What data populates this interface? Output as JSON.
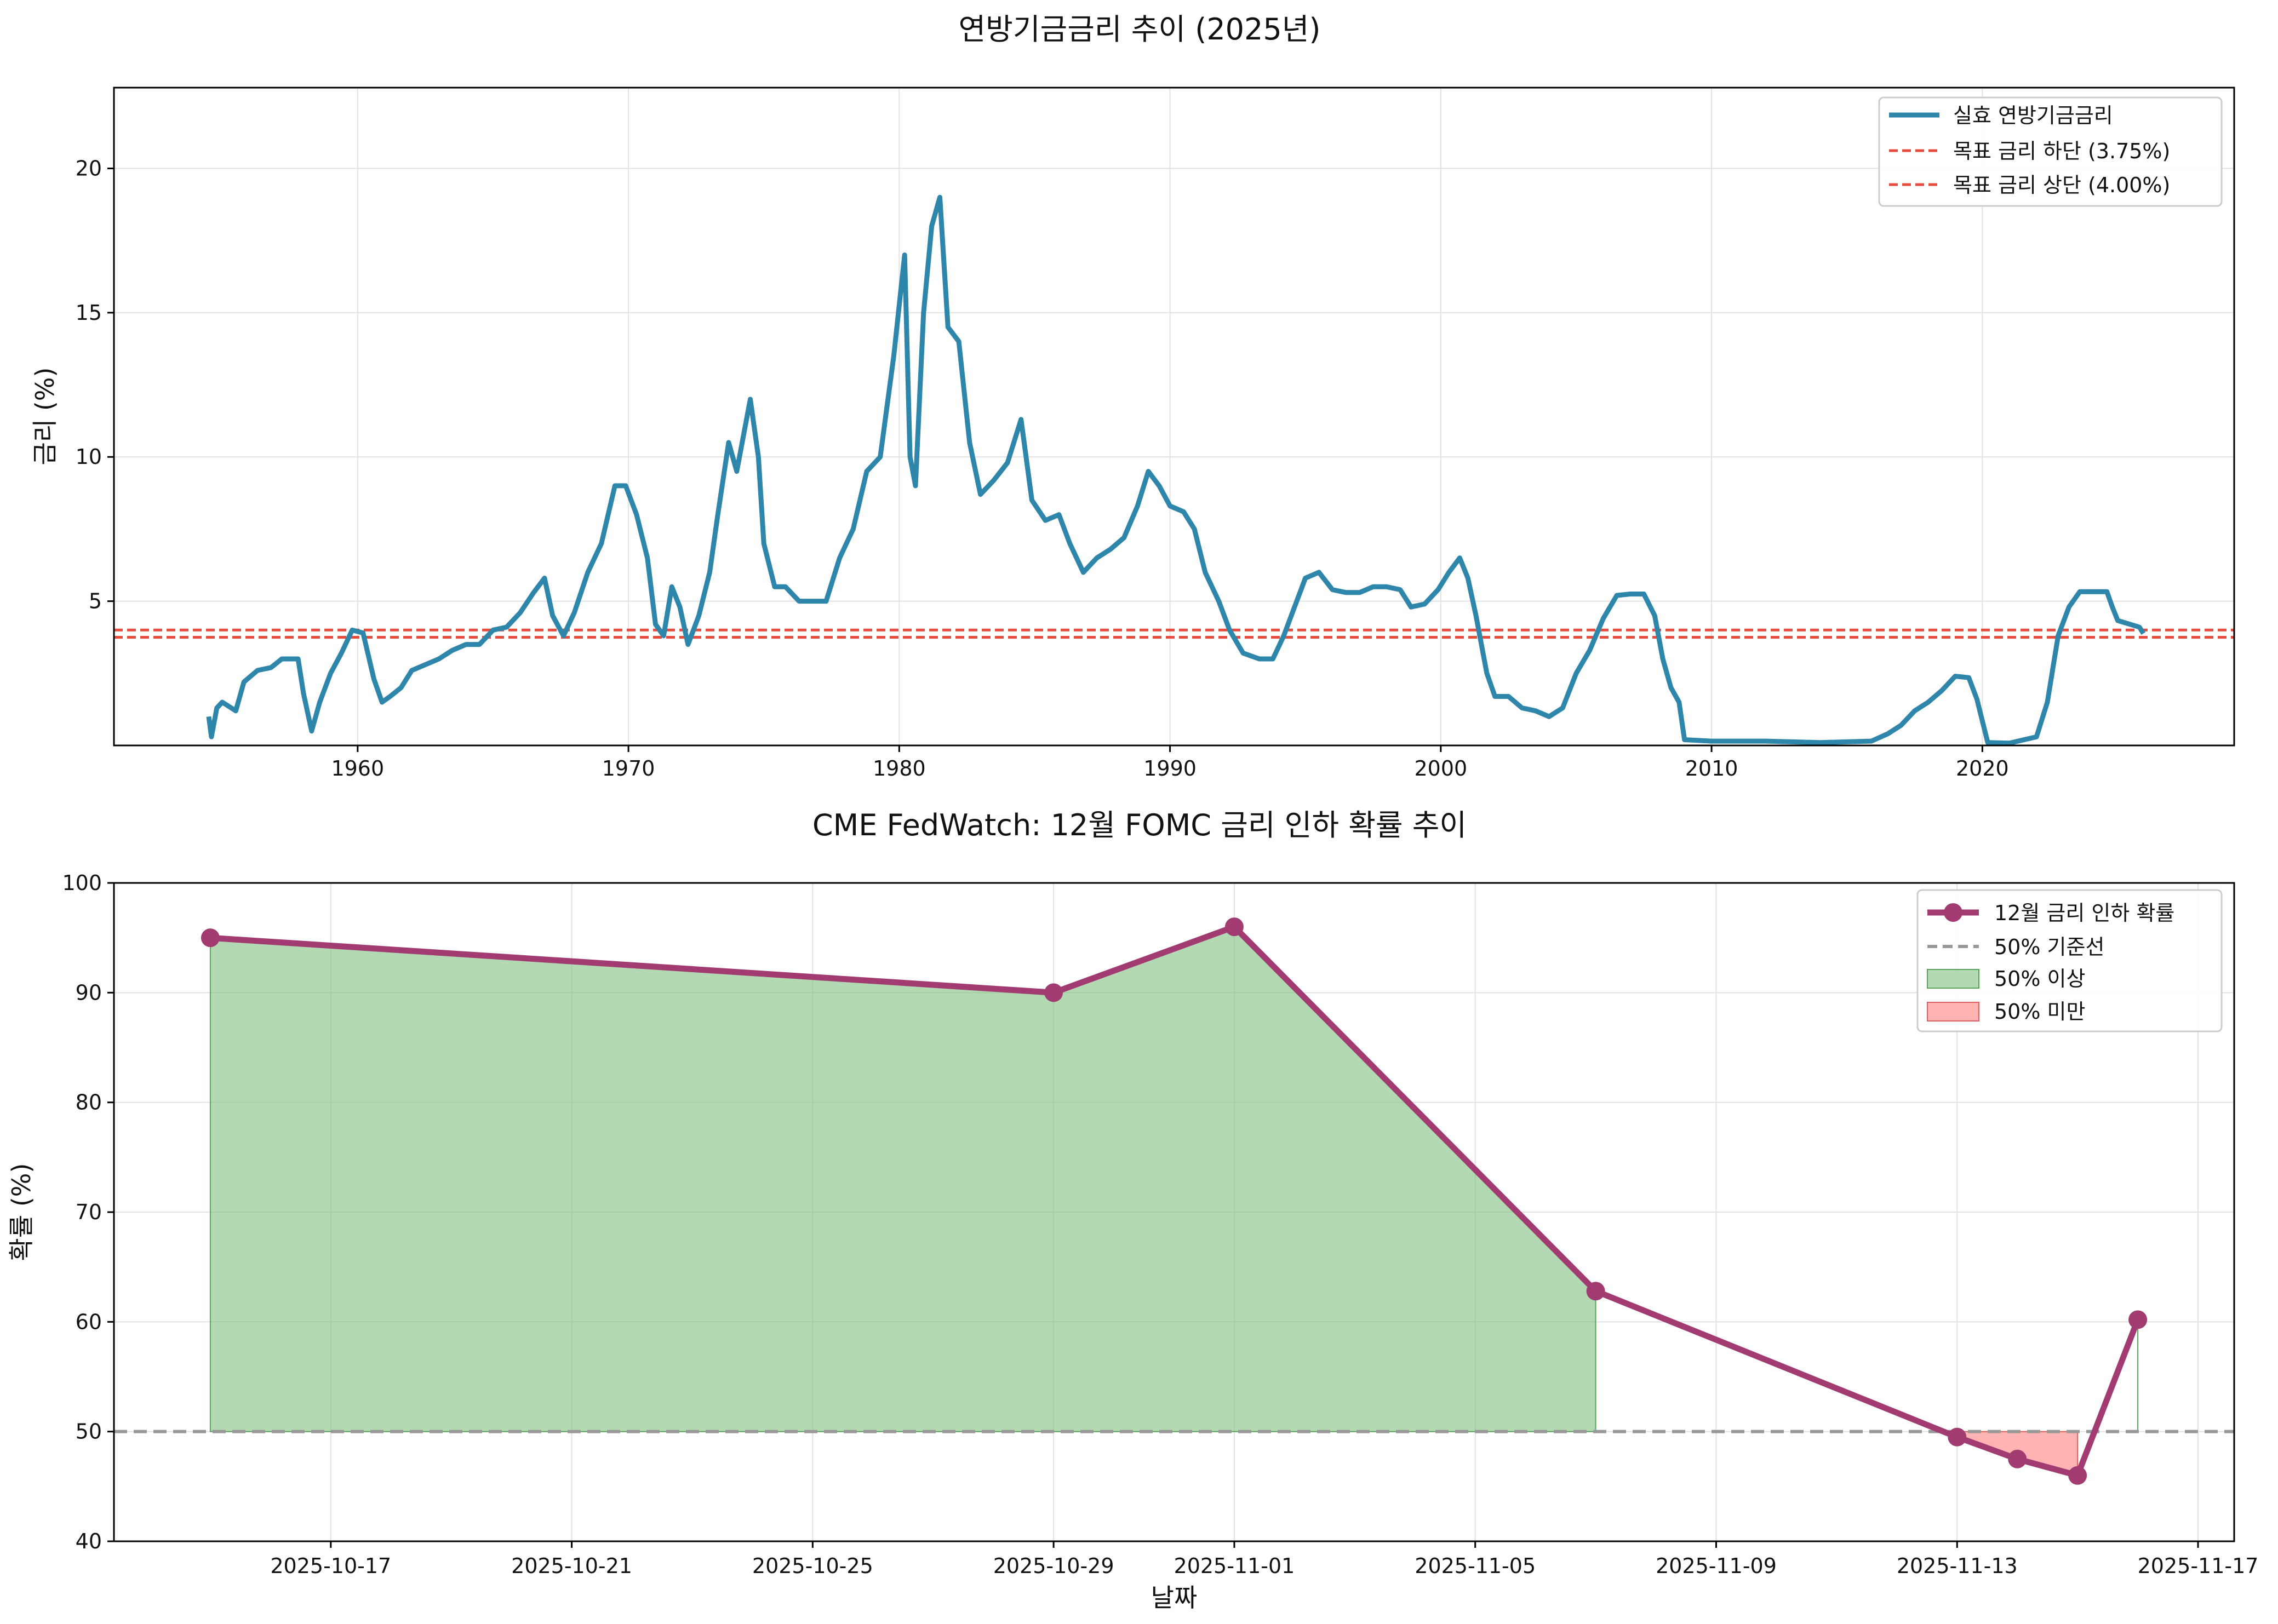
{
  "chart_data": [
    {
      "type": "line",
      "title": "연방기금금리 추이 (2025년)",
      "xlabel": "",
      "ylabel": "금리 (%)",
      "xlim": [
        1951.0,
        2029.3
      ],
      "ylim": [
        0.0,
        22.8
      ],
      "x_ticks": [
        1960,
        1970,
        1980,
        1990,
        2000,
        2010,
        2020
      ],
      "y_ticks": [
        5,
        10,
        15,
        20
      ],
      "grid": true,
      "legend_position": "top-right",
      "series": [
        {
          "name": "실효 연방기금금리",
          "color": "#2e86ab",
          "points": [
            [
              1954.5,
              1.0
            ],
            [
              1954.6,
              0.3
            ],
            [
              1954.8,
              1.3
            ],
            [
              1955.0,
              1.5
            ],
            [
              1955.5,
              1.2
            ],
            [
              1955.8,
              2.2
            ],
            [
              1956.3,
              2.6
            ],
            [
              1956.8,
              2.7
            ],
            [
              1957.2,
              3.0
            ],
            [
              1957.8,
              3.0
            ],
            [
              1958.0,
              1.8
            ],
            [
              1958.3,
              0.5
            ],
            [
              1958.6,
              1.5
            ],
            [
              1959.0,
              2.5
            ],
            [
              1959.4,
              3.2
            ],
            [
              1959.8,
              4.0
            ],
            [
              1960.2,
              3.9
            ],
            [
              1960.6,
              2.3
            ],
            [
              1960.9,
              1.5
            ],
            [
              1961.2,
              1.7
            ],
            [
              1961.6,
              2.0
            ],
            [
              1962.0,
              2.6
            ],
            [
              1962.5,
              2.8
            ],
            [
              1963.0,
              3.0
            ],
            [
              1963.5,
              3.3
            ],
            [
              1964.0,
              3.5
            ],
            [
              1964.5,
              3.5
            ],
            [
              1965.0,
              4.0
            ],
            [
              1965.5,
              4.1
            ],
            [
              1966.0,
              4.6
            ],
            [
              1966.5,
              5.3
            ],
            [
              1966.9,
              5.8
            ],
            [
              1967.2,
              4.5
            ],
            [
              1967.6,
              3.8
            ],
            [
              1968.0,
              4.6
            ],
            [
              1968.5,
              6.0
            ],
            [
              1969.0,
              7.0
            ],
            [
              1969.5,
              9.0
            ],
            [
              1969.9,
              9.0
            ],
            [
              1970.3,
              8.0
            ],
            [
              1970.7,
              6.5
            ],
            [
              1971.0,
              4.2
            ],
            [
              1971.3,
              3.8
            ],
            [
              1971.6,
              5.5
            ],
            [
              1971.9,
              4.8
            ],
            [
              1972.2,
              3.5
            ],
            [
              1972.6,
              4.5
            ],
            [
              1973.0,
              6.0
            ],
            [
              1973.3,
              8.0
            ],
            [
              1973.7,
              10.5
            ],
            [
              1974.0,
              9.5
            ],
            [
              1974.5,
              12.0
            ],
            [
              1974.8,
              10.0
            ],
            [
              1975.0,
              7.0
            ],
            [
              1975.4,
              5.5
            ],
            [
              1975.8,
              5.5
            ],
            [
              1976.3,
              5.0
            ],
            [
              1976.8,
              5.0
            ],
            [
              1977.3,
              5.0
            ],
            [
              1977.8,
              6.5
            ],
            [
              1978.3,
              7.5
            ],
            [
              1978.8,
              9.5
            ],
            [
              1979.3,
              10.0
            ],
            [
              1979.8,
              13.5
            ],
            [
              1980.2,
              17.0
            ],
            [
              1980.4,
              10.0
            ],
            [
              1980.6,
              9.0
            ],
            [
              1980.9,
              15.0
            ],
            [
              1981.2,
              18.0
            ],
            [
              1981.5,
              19.0
            ],
            [
              1981.8,
              14.5
            ],
            [
              1982.2,
              14.0
            ],
            [
              1982.6,
              10.5
            ],
            [
              1983.0,
              8.7
            ],
            [
              1983.5,
              9.2
            ],
            [
              1984.0,
              9.8
            ],
            [
              1984.5,
              11.3
            ],
            [
              1984.9,
              8.5
            ],
            [
              1985.4,
              7.8
            ],
            [
              1985.9,
              8.0
            ],
            [
              1986.3,
              7.0
            ],
            [
              1986.8,
              6.0
            ],
            [
              1987.3,
              6.5
            ],
            [
              1987.8,
              6.8
            ],
            [
              1988.3,
              7.2
            ],
            [
              1988.8,
              8.3
            ],
            [
              1989.2,
              9.5
            ],
            [
              1989.6,
              9.0
            ],
            [
              1990.0,
              8.3
            ],
            [
              1990.5,
              8.1
            ],
            [
              1990.9,
              7.5
            ],
            [
              1991.3,
              6.0
            ],
            [
              1991.8,
              5.0
            ],
            [
              1992.2,
              4.0
            ],
            [
              1992.7,
              3.2
            ],
            [
              1993.3,
              3.0
            ],
            [
              1993.8,
              3.0
            ],
            [
              1994.2,
              3.8
            ],
            [
              1994.6,
              4.8
            ],
            [
              1995.0,
              5.8
            ],
            [
              1995.5,
              6.0
            ],
            [
              1996.0,
              5.4
            ],
            [
              1996.5,
              5.3
            ],
            [
              1997.0,
              5.3
            ],
            [
              1997.5,
              5.5
            ],
            [
              1998.0,
              5.5
            ],
            [
              1998.5,
              5.4
            ],
            [
              1998.9,
              4.8
            ],
            [
              1999.4,
              4.9
            ],
            [
              1999.9,
              5.4
            ],
            [
              2000.3,
              6.0
            ],
            [
              2000.7,
              6.5
            ],
            [
              2001.0,
              5.8
            ],
            [
              2001.3,
              4.5
            ],
            [
              2001.7,
              2.5
            ],
            [
              2002.0,
              1.7
            ],
            [
              2002.5,
              1.7
            ],
            [
              2003.0,
              1.3
            ],
            [
              2003.5,
              1.2
            ],
            [
              2004.0,
              1.0
            ],
            [
              2004.5,
              1.3
            ],
            [
              2005.0,
              2.5
            ],
            [
              2005.5,
              3.3
            ],
            [
              2006.0,
              4.4
            ],
            [
              2006.5,
              5.2
            ],
            [
              2007.0,
              5.25
            ],
            [
              2007.5,
              5.25
            ],
            [
              2007.9,
              4.5
            ],
            [
              2008.2,
              3.0
            ],
            [
              2008.5,
              2.0
            ],
            [
              2008.8,
              1.5
            ],
            [
              2009.0,
              0.2
            ],
            [
              2010.0,
              0.15
            ],
            [
              2012.0,
              0.15
            ],
            [
              2014.0,
              0.1
            ],
            [
              2015.9,
              0.15
            ],
            [
              2016.5,
              0.4
            ],
            [
              2017.0,
              0.7
            ],
            [
              2017.5,
              1.2
            ],
            [
              2018.0,
              1.5
            ],
            [
              2018.5,
              1.9
            ],
            [
              2019.0,
              2.4
            ],
            [
              2019.5,
              2.35
            ],
            [
              2019.8,
              1.6
            ],
            [
              2020.2,
              0.1
            ],
            [
              2021.0,
              0.08
            ],
            [
              2022.0,
              0.3
            ],
            [
              2022.4,
              1.5
            ],
            [
              2022.8,
              3.8
            ],
            [
              2023.2,
              4.8
            ],
            [
              2023.6,
              5.33
            ],
            [
              2024.6,
              5.33
            ],
            [
              2024.8,
              4.8
            ],
            [
              2025.0,
              4.33
            ],
            [
              2025.8,
              4.1
            ],
            [
              2025.95,
              3.88
            ]
          ]
        },
        {
          "name": "목표 금리 하단 (3.75%)",
          "color": "#e74c3c",
          "dashed": true,
          "y": 3.75
        },
        {
          "name": "목표 금리 상단 (4.00%)",
          "color": "#e74c3c",
          "dashed": true,
          "y": 4.0
        }
      ]
    },
    {
      "type": "line",
      "title": "CME FedWatch: 12월 FOMC 금리 인하 확률 추이",
      "xlabel": "날짜",
      "ylabel": "확률 (%)",
      "ylim": [
        40,
        100
      ],
      "y_ticks": [
        40,
        50,
        60,
        70,
        80,
        90,
        100
      ],
      "x_ticks": [
        "2025-10-17",
        "2025-10-21",
        "2025-10-25",
        "2025-10-29",
        "2025-11-01",
        "2025-11-05",
        "2025-11-09",
        "2025-11-13",
        "2025-11-17"
      ],
      "grid": true,
      "legend_position": "top-right",
      "series": [
        {
          "name": "12월 금리 인하 확률",
          "color": "#a23b72",
          "x": [
            "2025-10-15",
            "2025-10-29",
            "2025-11-01",
            "2025-11-07",
            "2025-11-13",
            "2025-11-14",
            "2025-11-15",
            "2025-11-16"
          ],
          "values": [
            95.0,
            90.0,
            96.0,
            62.8,
            49.5,
            47.5,
            46.0,
            60.2
          ]
        },
        {
          "name": "50% 기준선",
          "color": "#999999",
          "dashed": true,
          "y": 50
        }
      ],
      "fills": [
        {
          "name": "50% 이상",
          "color": "#7fbf7f"
        },
        {
          "name": "50% 미만",
          "color": "#ff8080"
        }
      ]
    }
  ]
}
